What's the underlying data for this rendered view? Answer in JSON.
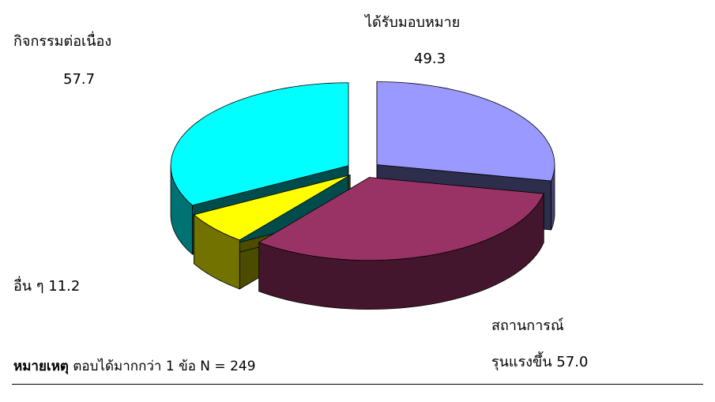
{
  "chart_data": {
    "type": "pie3d",
    "categories": [
      "ได้รับมอบหมาย",
      "สถานการณ์\nรุนแรงขึ้น",
      "อื่น ๆ",
      "กิจกรรมต่อเนื่อง"
    ],
    "values": [
      49.3,
      57.0,
      11.2,
      57.7
    ],
    "value_labels": [
      "49.3",
      "57.0",
      "11.2",
      "57.7"
    ],
    "colors": [
      "#9999ff",
      "#993366",
      "#ffff00",
      "#00ffff"
    ],
    "note_label": "หมายเหตุ",
    "note": "ตอบได้มากกว่า 1 ข้อ N = 249"
  }
}
